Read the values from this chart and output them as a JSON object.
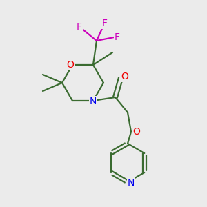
{
  "bg_color": "#ebebeb",
  "bond_color": "#3a6b30",
  "bond_width": 1.6,
  "atom_colors": {
    "O": "#ee0000",
    "N": "#0000ee",
    "F": "#cc00bb",
    "C": "#3a6b30"
  },
  "fig_size": [
    3.0,
    3.0
  ],
  "dpi": 100
}
